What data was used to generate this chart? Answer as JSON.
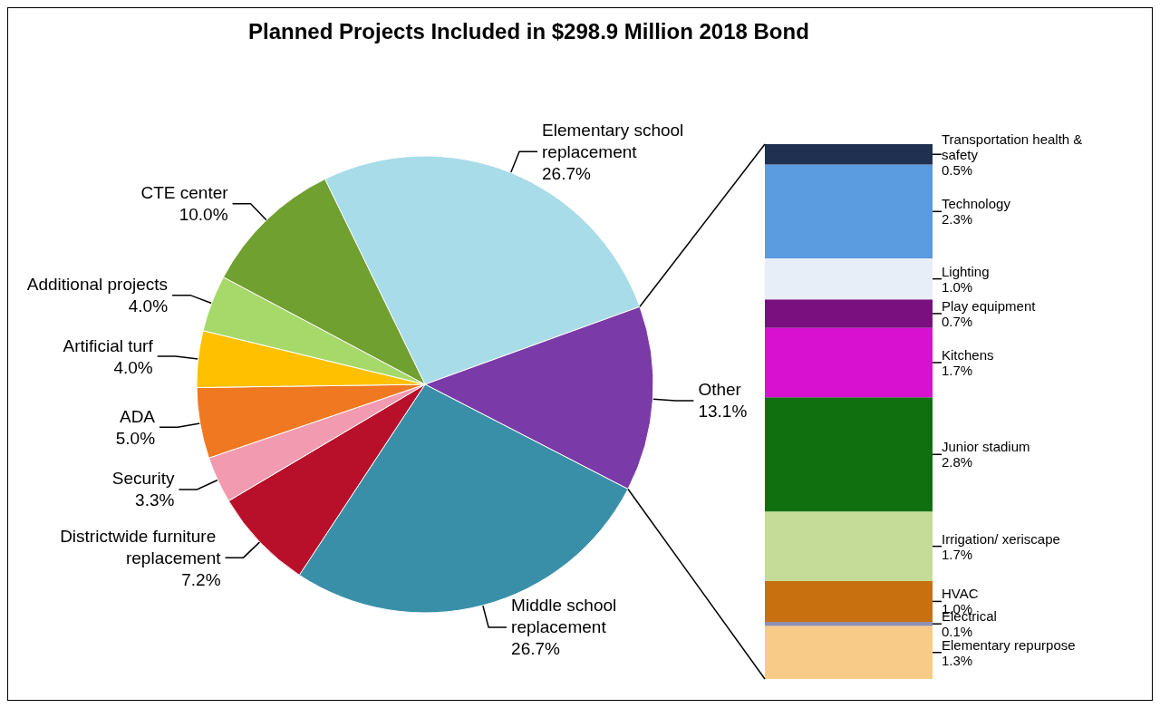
{
  "chart_data": [
    {
      "type": "pie",
      "title": "Planned Projects Included in $298.9 Million 2018 Bond",
      "categories": [
        "Elementary school replacement",
        "Other",
        "Middle school replacement",
        "Districtwide furniture replacement",
        "Security",
        "ADA",
        "Artificial turf",
        "Additional projects",
        "CTE center"
      ],
      "values": [
        26.7,
        13.1,
        26.7,
        7.2,
        3.3,
        5.0,
        4.0,
        4.0,
        10.0
      ],
      "value_labels": [
        "26.7%",
        "13.1%",
        "26.7%",
        "7.2%",
        "3.3%",
        "5.0%",
        "4.0%",
        "4.0%",
        "10.0%"
      ],
      "colors": [
        "#a8dce8",
        "#7a3aa8",
        "#3a8fa8",
        "#b8102a",
        "#f29bb0",
        "#f07820",
        "#ffc000",
        "#a6d96a",
        "#70a030"
      ],
      "legend": false
    },
    {
      "type": "bar",
      "stacked": true,
      "categories": [
        null
      ],
      "legend": false,
      "series": [
        {
          "name": "Elementary repurpose",
          "color": "#f8cc88",
          "values": [
            1.3
          ],
          "value_labels": [
            "1.3%"
          ]
        },
        {
          "name": "Electrical",
          "color": "#9090b0",
          "values": [
            0.1
          ],
          "value_labels": [
            "0.1%"
          ]
        },
        {
          "name": "HVAC",
          "color": "#c87010",
          "values": [
            1.0
          ],
          "value_labels": [
            "1.0%"
          ]
        },
        {
          "name": "Irrigation/ xeriscape",
          "color": "#c4dc98",
          "values": [
            1.7
          ],
          "value_labels": [
            "1.7%"
          ]
        },
        {
          "name": "Junior stadium",
          "color": "#107010",
          "values": [
            2.8
          ],
          "value_labels": [
            "2.8%"
          ]
        },
        {
          "name": "Kitchens",
          "color": "#d810d0",
          "values": [
            1.7
          ],
          "value_labels": [
            "1.7%"
          ]
        },
        {
          "name": "Play equipment",
          "color": "#7a1080",
          "values": [
            0.7
          ],
          "value_labels": [
            "0.7%"
          ]
        },
        {
          "name": "Lighting",
          "color": "#e8eef8",
          "values": [
            1.0
          ],
          "value_labels": [
            "1.0%"
          ]
        },
        {
          "name": "Technology",
          "color": "#5b9be0",
          "values": [
            2.3
          ],
          "value_labels": [
            "2.3%"
          ]
        },
        {
          "name": "Transportation health & safety",
          "color": "#1f3050",
          "values": [
            0.5
          ],
          "value_labels": [
            "0.5%"
          ]
        }
      ]
    }
  ]
}
